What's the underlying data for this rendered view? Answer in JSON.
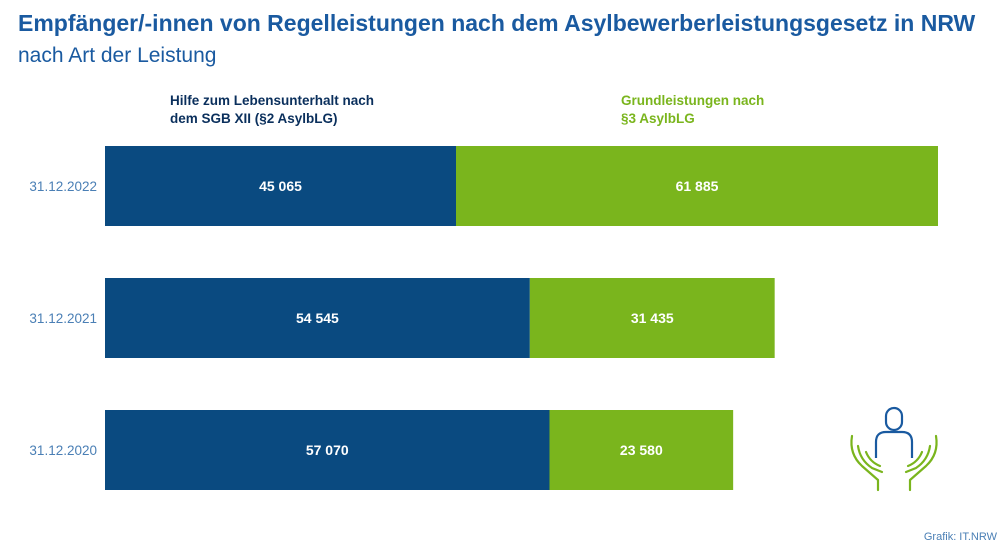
{
  "chart_data": {
    "type": "bar",
    "orientation": "horizontal",
    "stacked": true,
    "title": "Empfänger/-innen von Regelleistungen nach dem Asylbewerberleistungsgesetz in NRW",
    "subtitle": "nach Art der Leistung",
    "categories": [
      "31.12.2022",
      "31.12.2021",
      "31.12.2020"
    ],
    "value_labels": [
      [
        "45 065",
        "61 885"
      ],
      [
        "54 545",
        "31 435"
      ],
      [
        "57 070",
        "23 580"
      ]
    ],
    "series": [
      {
        "name": "Hilfe zum Lebensunterhalt nach dem SGB XII (§2 AsylbLG)",
        "name_lines": [
          "Hilfe zum Lebensunterhalt nach",
          "dem SGB XII (§2 AsylbLG)"
        ],
        "color": "#0a4a80",
        "values": [
          45065,
          54545,
          57070
        ]
      },
      {
        "name": "Grundleistungen nach §3 AsylbLG",
        "name_lines": [
          "Grundleistungen nach",
          "§3 AsylbLG"
        ],
        "color": "#7ab51d",
        "values": [
          61885,
          31435,
          23580
        ]
      }
    ],
    "xlim": [
      0,
      106950
    ],
    "grid": false,
    "legend_position": "top"
  },
  "credit": "Grafik: IT.NRW",
  "icon": "hands-holding-person-icon"
}
